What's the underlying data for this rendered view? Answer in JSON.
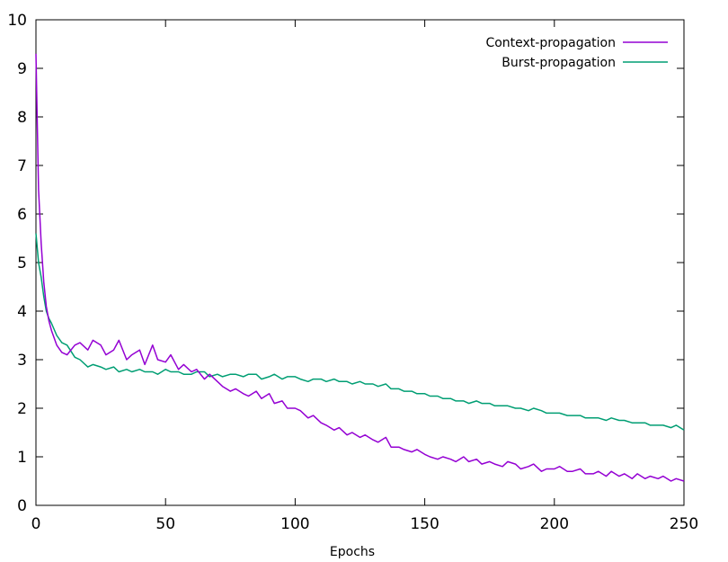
{
  "chart_data": {
    "type": "line",
    "xlabel": "Epochs",
    "ylabel": "",
    "xlim": [
      0,
      250
    ],
    "ylim": [
      0,
      10
    ],
    "xticks": [
      0,
      50,
      100,
      150,
      200,
      250
    ],
    "yticks": [
      0,
      1,
      2,
      3,
      4,
      5,
      6,
      7,
      8,
      9,
      10
    ],
    "grid": false,
    "legend": "top-right",
    "series": [
      {
        "name": "Context-propagation",
        "color": "#9400d3",
        "x": [
          0,
          1,
          2,
          3,
          4,
          5,
          6,
          8,
          10,
          12,
          15,
          17,
          20,
          22,
          25,
          27,
          30,
          32,
          35,
          37,
          40,
          42,
          45,
          47,
          50,
          52,
          55,
          57,
          60,
          62,
          65,
          67,
          70,
          72,
          75,
          77,
          80,
          82,
          85,
          87,
          90,
          92,
          95,
          97,
          100,
          102,
          105,
          107,
          110,
          112,
          115,
          117,
          120,
          122,
          125,
          127,
          130,
          132,
          135,
          137,
          140,
          142,
          145,
          147,
          150,
          152,
          155,
          157,
          160,
          162,
          165,
          167,
          170,
          172,
          175,
          177,
          180,
          182,
          185,
          187,
          190,
          192,
          195,
          197,
          200,
          202,
          205,
          207,
          210,
          212,
          215,
          217,
          220,
          222,
          225,
          227,
          230,
          232,
          235,
          237,
          240,
          242,
          245,
          247,
          250
        ],
        "y": [
          9.3,
          6.5,
          5.4,
          4.6,
          4.1,
          3.8,
          3.6,
          3.3,
          3.15,
          3.1,
          3.3,
          3.35,
          3.2,
          3.4,
          3.3,
          3.1,
          3.2,
          3.4,
          3.0,
          3.1,
          3.2,
          2.9,
          3.3,
          3.0,
          2.95,
          3.1,
          2.8,
          2.9,
          2.75,
          2.8,
          2.6,
          2.7,
          2.55,
          2.45,
          2.35,
          2.4,
          2.3,
          2.25,
          2.35,
          2.2,
          2.3,
          2.1,
          2.15,
          2.0,
          2.0,
          1.95,
          1.8,
          1.85,
          1.7,
          1.65,
          1.55,
          1.6,
          1.45,
          1.5,
          1.4,
          1.45,
          1.35,
          1.3,
          1.4,
          1.2,
          1.2,
          1.15,
          1.1,
          1.15,
          1.05,
          1.0,
          0.95,
          1.0,
          0.95,
          0.9,
          1.0,
          0.9,
          0.95,
          0.85,
          0.9,
          0.85,
          0.8,
          0.9,
          0.85,
          0.75,
          0.8,
          0.85,
          0.7,
          0.75,
          0.75,
          0.8,
          0.7,
          0.7,
          0.75,
          0.65,
          0.65,
          0.7,
          0.6,
          0.7,
          0.6,
          0.65,
          0.55,
          0.65,
          0.55,
          0.6,
          0.55,
          0.6,
          0.5,
          0.55,
          0.5
        ]
      },
      {
        "name": "Burst-propagation",
        "color": "#009e73",
        "x": [
          0,
          1,
          2,
          3,
          4,
          5,
          6,
          8,
          10,
          12,
          15,
          17,
          20,
          22,
          25,
          27,
          30,
          32,
          35,
          37,
          40,
          42,
          45,
          47,
          50,
          52,
          55,
          57,
          60,
          62,
          65,
          67,
          70,
          72,
          75,
          77,
          80,
          82,
          85,
          87,
          90,
          92,
          95,
          97,
          100,
          102,
          105,
          107,
          110,
          112,
          115,
          117,
          120,
          122,
          125,
          127,
          130,
          132,
          135,
          137,
          140,
          142,
          145,
          147,
          150,
          152,
          155,
          157,
          160,
          162,
          165,
          167,
          170,
          172,
          175,
          177,
          180,
          182,
          185,
          187,
          190,
          192,
          195,
          197,
          200,
          202,
          205,
          207,
          210,
          212,
          215,
          217,
          220,
          222,
          225,
          227,
          230,
          232,
          235,
          237,
          240,
          242,
          245,
          247,
          250
        ],
        "y": [
          5.6,
          5.0,
          4.7,
          4.3,
          4.0,
          3.85,
          3.75,
          3.5,
          3.35,
          3.3,
          3.05,
          3.0,
          2.85,
          2.9,
          2.85,
          2.8,
          2.85,
          2.75,
          2.8,
          2.75,
          2.8,
          2.75,
          2.75,
          2.7,
          2.8,
          2.75,
          2.75,
          2.7,
          2.7,
          2.75,
          2.75,
          2.65,
          2.7,
          2.65,
          2.7,
          2.7,
          2.65,
          2.7,
          2.7,
          2.6,
          2.65,
          2.7,
          2.6,
          2.65,
          2.65,
          2.6,
          2.55,
          2.6,
          2.6,
          2.55,
          2.6,
          2.55,
          2.55,
          2.5,
          2.55,
          2.5,
          2.5,
          2.45,
          2.5,
          2.4,
          2.4,
          2.35,
          2.35,
          2.3,
          2.3,
          2.25,
          2.25,
          2.2,
          2.2,
          2.15,
          2.15,
          2.1,
          2.15,
          2.1,
          2.1,
          2.05,
          2.05,
          2.05,
          2.0,
          2.0,
          1.95,
          2.0,
          1.95,
          1.9,
          1.9,
          1.9,
          1.85,
          1.85,
          1.85,
          1.8,
          1.8,
          1.8,
          1.75,
          1.8,
          1.75,
          1.75,
          1.7,
          1.7,
          1.7,
          1.65,
          1.65,
          1.65,
          1.6,
          1.65,
          1.55
        ]
      }
    ]
  }
}
